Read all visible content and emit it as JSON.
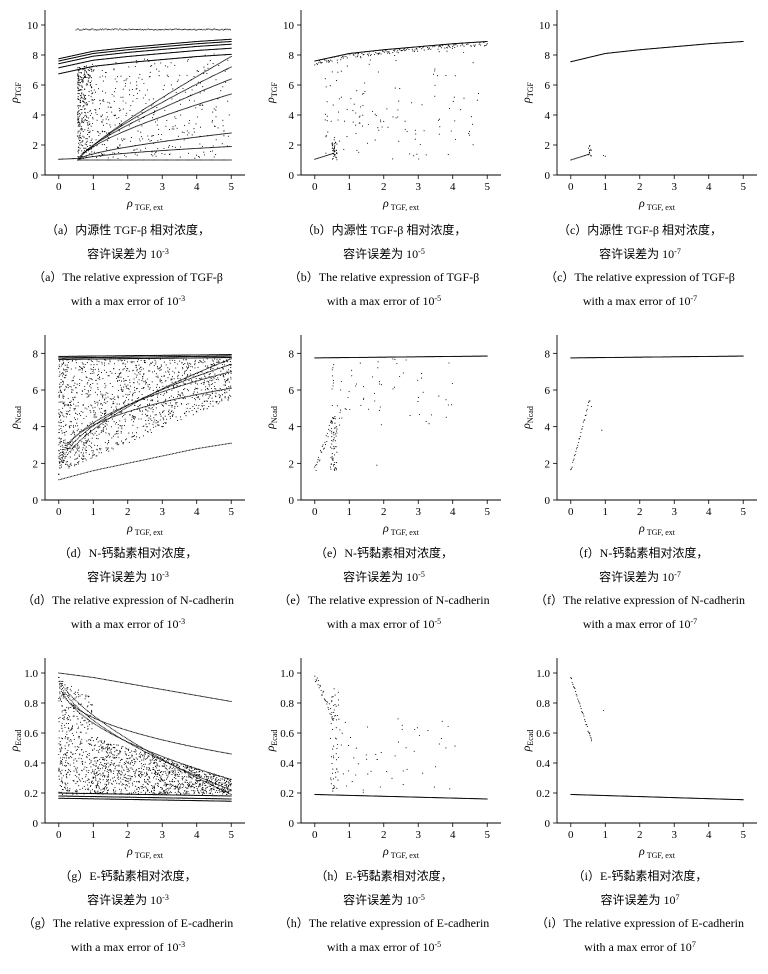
{
  "x_label": {
    "main": "ρ",
    "sub": "TGF, ext"
  },
  "x_ticks": [
    "0",
    "1",
    "2",
    "3",
    "4",
    "5"
  ],
  "rows": [
    {
      "y_label": {
        "main": "ρ",
        "sub": "TGF"
      },
      "y_ticks": [
        "0",
        "2",
        "4",
        "6",
        "8",
        "10"
      ],
      "ylim": [
        0,
        11
      ]
    },
    {
      "y_label": {
        "main": "ρ",
        "sub": "Ncad"
      },
      "y_ticks": [
        "0",
        "2",
        "4",
        "6",
        "8"
      ],
      "ylim": [
        0,
        9
      ]
    },
    {
      "y_label": {
        "main": "ρ",
        "sub": "Ecad"
      },
      "y_ticks": [
        "0",
        "0.2",
        "0.4",
        "0.6",
        "0.8",
        "1.0"
      ],
      "ylim": [
        0,
        1.1
      ]
    }
  ],
  "panels": [
    {
      "id": "a",
      "cn1": "（a）内源性 TGF-β 相对浓度，",
      "cn2": "容许误差为 10",
      "cn2_exp": "-3",
      "en1": "（a）The relative expression of TGF-β",
      "en2": "with a max error of 10",
      "en2_exp": "-3"
    },
    {
      "id": "b",
      "cn1": "（b）内源性 TGF-β 相对浓度，",
      "cn2": "容许误差为 10",
      "cn2_exp": "-5",
      "en1": "（b）The relative expression of TGF-β",
      "en2": "with a max error of 10",
      "en2_exp": "-5"
    },
    {
      "id": "c",
      "cn1": "（c）内源性 TGF-β 相对浓度，",
      "cn2": "容许误差为 10",
      "cn2_exp": "-7",
      "en1": "（c）The relative expression of TGF-β",
      "en2": "with a max error of 10",
      "en2_exp": "-7"
    },
    {
      "id": "d",
      "cn1": "（d）N-钙黏素相对浓度，",
      "cn2": "容许误差为 10",
      "cn2_exp": "-3",
      "en1": "（d）The relative expression of N-cadherin",
      "en2": "with a max error of 10",
      "en2_exp": "-3"
    },
    {
      "id": "e",
      "cn1": "（e）N-钙黏素相对浓度，",
      "cn2": "容许误差为 10",
      "cn2_exp": "-5",
      "en1": "（e）The relative expression of N-cadherin",
      "en2": "with a max error of 10",
      "en2_exp": "-5"
    },
    {
      "id": "f",
      "cn1": "（f）N-钙黏素相对浓度，",
      "cn2": "容许误差为 10",
      "cn2_exp": "-7",
      "en1": "（f）The relative expression of N-cadherin",
      "en2": "with a max error of 10",
      "en2_exp": "-7"
    },
    {
      "id": "g",
      "cn1": "（g）E-钙黏素相对浓度，",
      "cn2": "容许误差为 10",
      "cn2_exp": "-3",
      "en1": "（g）The relative expression of E-cadherin",
      "en2": "with a max error of 10",
      "en2_exp": "-3"
    },
    {
      "id": "h",
      "cn1": "（h）E-钙黏素相对浓度，",
      "cn2": "容许误差为 10",
      "cn2_exp": "-5",
      "en1": "（h）The relative expression of E-cadherin",
      "en2": "with a max error of 10",
      "en2_exp": "-5"
    },
    {
      "id": "i",
      "cn1": "（i）E-钙黏素相对浓度，",
      "cn2": "容许误差为 10",
      "cn2_exp": "7",
      "en1": "（i）The relative expression of E-cadherin",
      "en2": "with a max error of 10",
      "en2_exp": "7"
    }
  ],
  "chart_data": [
    {
      "type": "scatter",
      "panel": "a",
      "xlim": [
        -0.4,
        5.4
      ],
      "ylim": [
        0,
        11
      ],
      "grid": false,
      "series": [
        {
          "role": "upper_branch",
          "x": [
            0,
            1,
            2,
            3,
            4,
            5
          ],
          "y": [
            7.6,
            8.1,
            8.35,
            8.55,
            8.75,
            8.9
          ],
          "band": 0.9
        },
        {
          "role": "lower_branch",
          "x": [
            0,
            0.55
          ],
          "y": [
            1.05,
            1.1
          ]
        },
        {
          "role": "top_line",
          "x": [
            0.5,
            5
          ],
          "y": [
            9.7,
            9.7
          ]
        },
        {
          "role": "curves_end_values",
          "x": [
            5,
            5,
            5,
            5,
            5,
            5,
            5
          ],
          "y": [
            1.0,
            1.9,
            2.8,
            5.4,
            6.4,
            7.2,
            7.9
          ]
        }
      ]
    },
    {
      "type": "scatter",
      "panel": "b",
      "xlim": [
        -0.4,
        5.4
      ],
      "ylim": [
        0,
        11
      ],
      "grid": false,
      "series": [
        {
          "role": "upper_branch",
          "x": [
            0,
            1,
            2,
            3,
            4,
            5
          ],
          "y": [
            7.6,
            8.1,
            8.35,
            8.55,
            8.75,
            8.9
          ],
          "band": 0.3
        },
        {
          "role": "lower_branch",
          "x": [
            0,
            0.55
          ],
          "y": [
            1.05,
            1.45
          ]
        }
      ]
    },
    {
      "type": "scatter",
      "panel": "c",
      "xlim": [
        -0.4,
        5.4
      ],
      "ylim": [
        0,
        11
      ],
      "grid": false,
      "series": [
        {
          "role": "upper_branch",
          "x": [
            0,
            1,
            2,
            3,
            4,
            5
          ],
          "y": [
            7.55,
            8.1,
            8.35,
            8.55,
            8.75,
            8.9
          ]
        },
        {
          "role": "lower_branch",
          "x": [
            0,
            0.55
          ],
          "y": [
            1.0,
            1.4
          ]
        }
      ]
    },
    {
      "type": "scatter",
      "panel": "d",
      "xlim": [
        -0.4,
        5.4
      ],
      "ylim": [
        0,
        9
      ],
      "grid": false,
      "series": [
        {
          "role": "upper_branch",
          "x": [
            0,
            5
          ],
          "y": [
            7.75,
            7.85
          ],
          "band": 0.15
        },
        {
          "role": "lower_curve",
          "x": [
            0,
            1,
            2,
            3,
            4,
            5
          ],
          "y": [
            1.1,
            1.6,
            2.0,
            2.4,
            2.8,
            3.1
          ]
        },
        {
          "role": "curves_end_values",
          "x": [
            5,
            5,
            5,
            5
          ],
          "y": [
            6.1,
            7.0,
            7.4,
            7.7
          ]
        }
      ]
    },
    {
      "type": "scatter",
      "panel": "e",
      "xlim": [
        -0.4,
        5.4
      ],
      "ylim": [
        0,
        9
      ],
      "grid": false,
      "series": [
        {
          "role": "upper_branch",
          "x": [
            0,
            5
          ],
          "y": [
            7.75,
            7.85
          ]
        },
        {
          "role": "lower_branch",
          "x": [
            0,
            0.55
          ],
          "y": [
            1.6,
            4.5
          ]
        }
      ]
    },
    {
      "type": "scatter",
      "panel": "f",
      "xlim": [
        -0.4,
        5.4
      ],
      "ylim": [
        0,
        9
      ],
      "grid": false,
      "series": [
        {
          "role": "upper_branch",
          "x": [
            0,
            5
          ],
          "y": [
            7.75,
            7.85
          ]
        },
        {
          "role": "lower_branch",
          "x": [
            0,
            0.55
          ],
          "y": [
            1.6,
            5.5
          ]
        }
      ]
    },
    {
      "type": "scatter",
      "panel": "g",
      "xlim": [
        -0.4,
        5.4
      ],
      "ylim": [
        0,
        1.1
      ],
      "grid": false,
      "series": [
        {
          "role": "lower_branch",
          "x": [
            0,
            5
          ],
          "y": [
            0.18,
            0.16
          ],
          "band": 0.03
        },
        {
          "role": "top_curve",
          "x": [
            0,
            1,
            2,
            3,
            4,
            5
          ],
          "y": [
            1.0,
            0.97,
            0.93,
            0.89,
            0.85,
            0.81
          ]
        },
        {
          "role": "curves_end_values",
          "x": [
            5,
            5,
            5,
            5
          ],
          "y": [
            0.46,
            0.29,
            0.22,
            0.19
          ]
        }
      ]
    },
    {
      "type": "scatter",
      "panel": "h",
      "xlim": [
        -0.4,
        5.4
      ],
      "ylim": [
        0,
        1.1
      ],
      "grid": false,
      "series": [
        {
          "role": "lower_branch",
          "x": [
            0,
            5
          ],
          "y": [
            0.19,
            0.16
          ]
        },
        {
          "role": "upper_branch",
          "x": [
            0,
            0.55
          ],
          "y": [
            0.98,
            0.7
          ]
        }
      ]
    },
    {
      "type": "scatter",
      "panel": "i",
      "xlim": [
        -0.4,
        5.4
      ],
      "ylim": [
        0,
        1.1
      ],
      "grid": false,
      "series": [
        {
          "role": "lower_branch",
          "x": [
            0,
            5
          ],
          "y": [
            0.19,
            0.155
          ]
        },
        {
          "role": "upper_branch",
          "x": [
            0,
            0.6
          ],
          "y": [
            0.97,
            0.55
          ]
        }
      ]
    }
  ]
}
